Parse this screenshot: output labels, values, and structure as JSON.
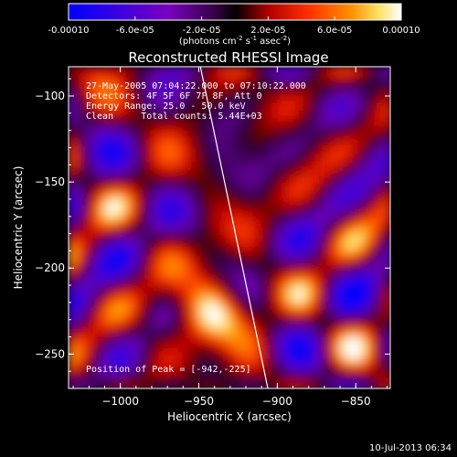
{
  "colorbar": {
    "tick_labels": [
      "-0.00010",
      "-6.0e-05",
      "-2.0e-05",
      "2.0e-05",
      "6.0e-05",
      "0.00010"
    ],
    "tick_values": [
      -0.0001,
      -6e-05,
      -2e-05,
      2e-05,
      6e-05,
      0.0001
    ],
    "range": [
      -0.0001,
      0.0001
    ],
    "units_label": "(photons cm",
    "units_sup1": "-2",
    "units_mid": " s",
    "units_sup2": "-1",
    "units_end": " asec",
    "units_sup3": "-2",
    "units_close": ")"
  },
  "chart_data": {
    "type": "heatmap",
    "title": "Reconstructed RHESSI Image",
    "xlabel": "Heliocentric X (arcsec)",
    "ylabel": "Heliocentric Y (arcsec)",
    "xlim": [
      -1033,
      -828
    ],
    "ylim": [
      -270,
      -83
    ],
    "x_ticks": [
      -1000,
      -950,
      -900,
      -850
    ],
    "x_tick_labels": [
      "−1000",
      "−950",
      "−900",
      "−850"
    ],
    "y_ticks": [
      -100,
      -150,
      -200,
      -250
    ],
    "y_tick_labels": [
      "−100",
      "−150",
      "−200",
      "−250"
    ],
    "annotations": [
      "27-May-2005 07:04:22.000 to 07:10:22.000",
      "Detectors: 4F 5F 6F 7F 8F, Att 0",
      "Energy Range: 25.0 - 50.0 keV",
      "Clean     Total counts: 5.44E+03"
    ],
    "peak_label": "Position of Peak = [-942,-225]",
    "peak": [
      -942,
      -225
    ],
    "limb_line": [
      [
        -949,
        -83
      ],
      [
        -906,
        -270
      ]
    ],
    "colormap": "rhessi-diverging (blue-purple-black-red-orange-yellow-white)"
  },
  "footer": {
    "timestamp": "10-Jul-2013 06:34"
  }
}
